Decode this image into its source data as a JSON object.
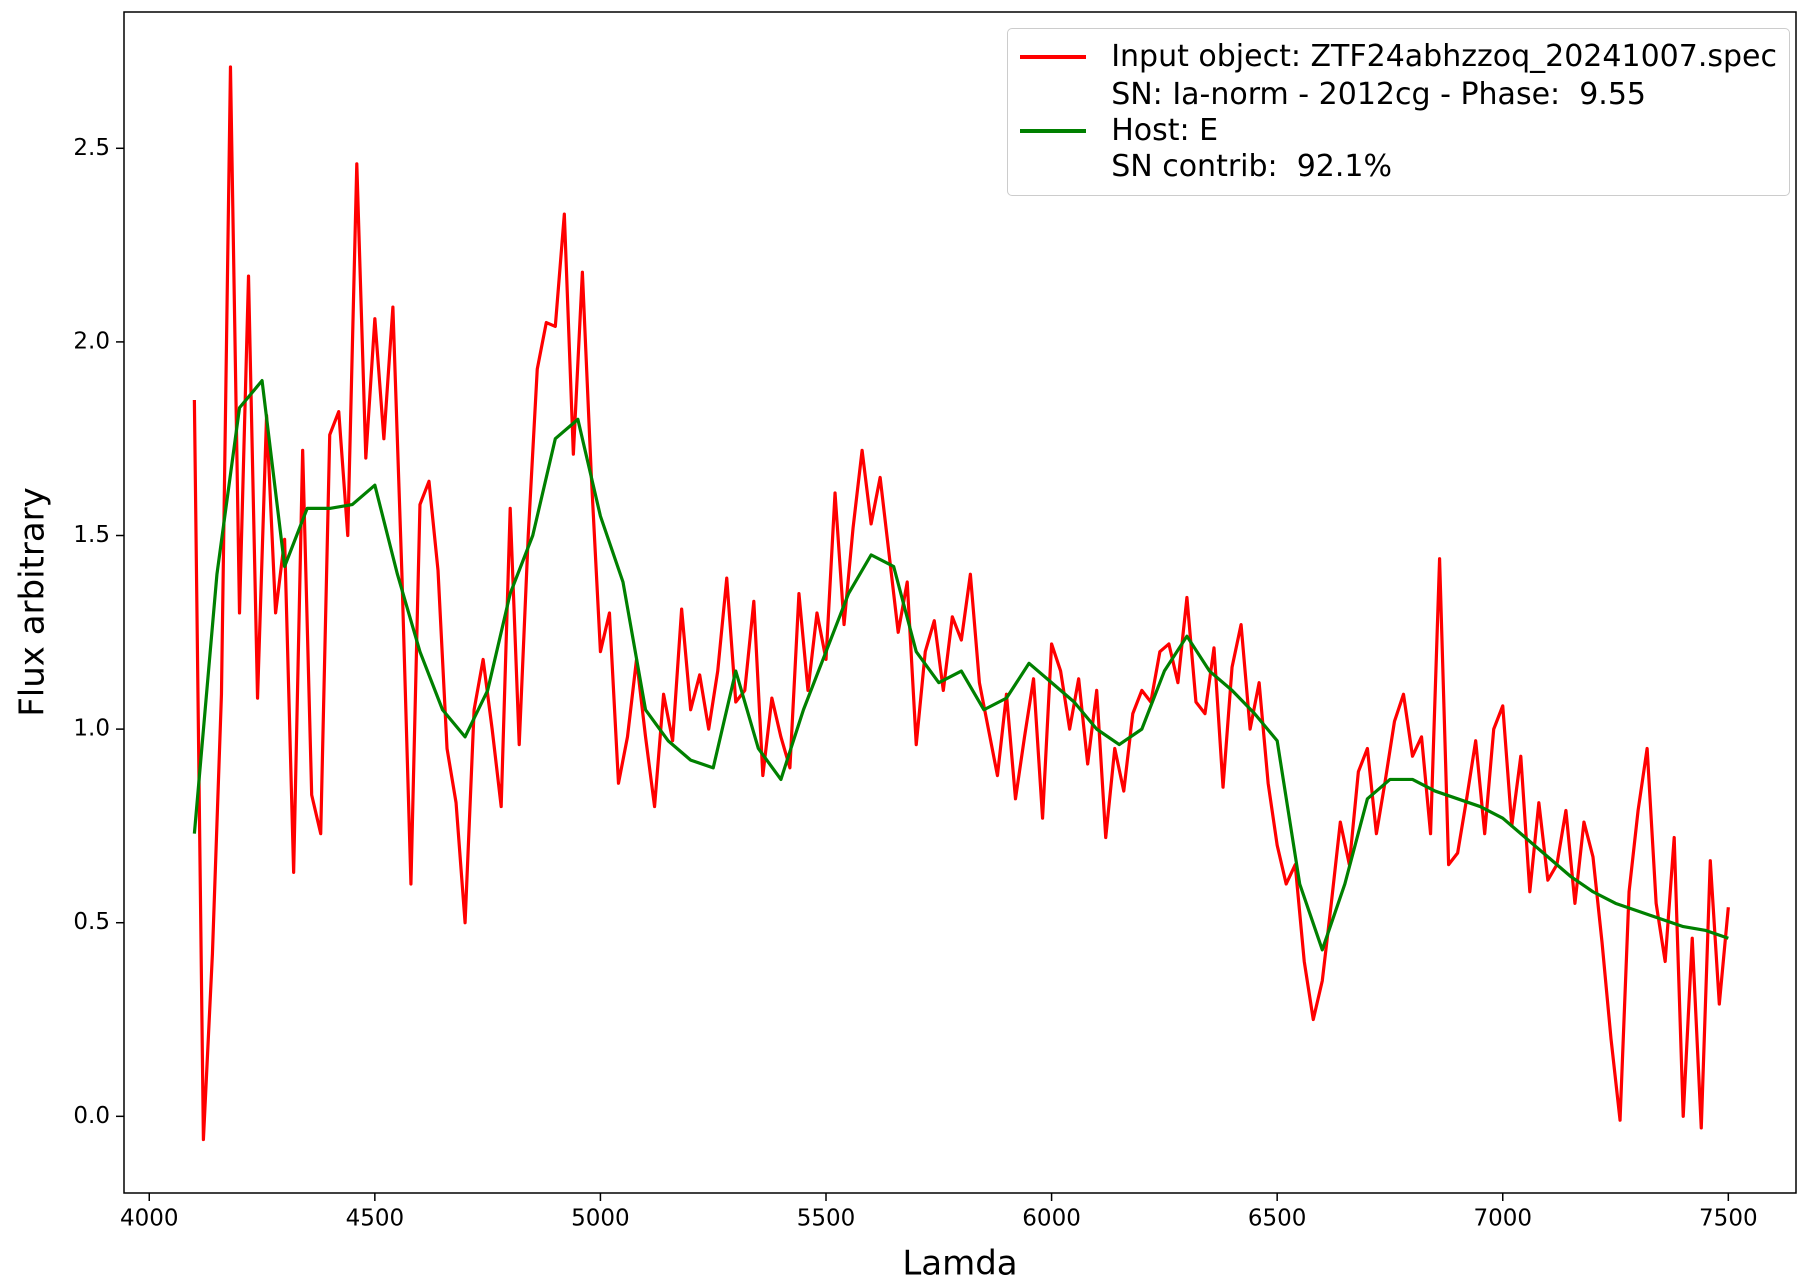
{
  "chart_data": {
    "type": "line",
    "xlabel": "Lamda",
    "ylabel": "Flux arbitrary",
    "xlim": [
      3944,
      7650
    ],
    "ylim": [
      -0.198,
      2.852
    ],
    "xticks": [
      4000,
      4500,
      5000,
      5500,
      6000,
      6500,
      7000,
      7500
    ],
    "yticks": [
      {
        "value": 0,
        "label": "0.0"
      },
      0.5,
      {
        "value": 1,
        "label": "1.0"
      },
      1.5,
      {
        "value": 2,
        "label": "2.0"
      },
      2.5
    ],
    "grid": false,
    "legend": "upper right",
    "series": [
      {
        "name": "Input object: ZTF24abhzzoq_20241007.spec",
        "color": "#ff0000",
        "x": [
          4100,
          4120,
          4140,
          4160,
          4180,
          4200,
          4220,
          4240,
          4260,
          4280,
          4300,
          4320,
          4340,
          4360,
          4380,
          4400,
          4420,
          4440,
          4460,
          4480,
          4500,
          4520,
          4540,
          4560,
          4580,
          4600,
          4620,
          4640,
          4660,
          4680,
          4700,
          4720,
          4740,
          4760,
          4780,
          4800,
          4820,
          4840,
          4860,
          4880,
          4900,
          4920,
          4940,
          4960,
          4980,
          5000,
          5020,
          5040,
          5060,
          5080,
          5100,
          5120,
          5140,
          5160,
          5180,
          5200,
          5220,
          5240,
          5260,
          5280,
          5300,
          5320,
          5340,
          5360,
          5380,
          5400,
          5420,
          5440,
          5460,
          5480,
          5500,
          5520,
          5540,
          5560,
          5580,
          5600,
          5620,
          5640,
          5660,
          5680,
          5700,
          5720,
          5740,
          5760,
          5780,
          5800,
          5820,
          5840,
          5860,
          5880,
          5900,
          5920,
          5940,
          5960,
          5980,
          6000,
          6020,
          6040,
          6060,
          6080,
          6100,
          6120,
          6140,
          6160,
          6180,
          6200,
          6220,
          6240,
          6260,
          6280,
          6300,
          6320,
          6340,
          6360,
          6380,
          6400,
          6420,
          6440,
          6460,
          6480,
          6500,
          6520,
          6540,
          6560,
          6580,
          6600,
          6620,
          6640,
          6660,
          6680,
          6700,
          6720,
          6740,
          6760,
          6780,
          6800,
          6820,
          6840,
          6860,
          6880,
          6900,
          6920,
          6940,
          6960,
          6980,
          7000,
          7020,
          7040,
          7060,
          7080,
          7100,
          7120,
          7140,
          7160,
          7180,
          7200,
          7220,
          7240,
          7260,
          7280,
          7300,
          7320,
          7340,
          7360,
          7380,
          7400,
          7420,
          7440,
          7460,
          7480,
          7500
        ],
        "values": [
          1.85,
          -0.06,
          0.42,
          1.09,
          2.71,
          1.3,
          2.17,
          1.08,
          1.81,
          1.3,
          1.49,
          0.63,
          1.72,
          0.83,
          0.73,
          1.76,
          1.82,
          1.5,
          2.46,
          1.7,
          2.06,
          1.75,
          2.09,
          1.4,
          0.6,
          1.58,
          1.64,
          1.41,
          0.95,
          0.81,
          0.5,
          1.05,
          1.18,
          1.0,
          0.8,
          1.57,
          0.96,
          1.5,
          1.93,
          2.05,
          2.04,
          2.33,
          1.71,
          2.18,
          1.65,
          1.2,
          1.3,
          0.86,
          0.98,
          1.18,
          0.98,
          0.8,
          1.09,
          0.97,
          1.31,
          1.05,
          1.14,
          1.0,
          1.15,
          1.39,
          1.07,
          1.1,
          1.33,
          0.88,
          1.08,
          0.98,
          0.9,
          1.35,
          1.1,
          1.3,
          1.18,
          1.61,
          1.27,
          1.52,
          1.72,
          1.53,
          1.65,
          1.45,
          1.25,
          1.38,
          0.96,
          1.2,
          1.28,
          1.1,
          1.29,
          1.23,
          1.4,
          1.12,
          1.0,
          0.88,
          1.09,
          0.82,
          0.98,
          1.13,
          0.77,
          1.22,
          1.15,
          1.0,
          1.13,
          0.91,
          1.1,
          0.72,
          0.95,
          0.84,
          1.04,
          1.1,
          1.07,
          1.2,
          1.22,
          1.12,
          1.34,
          1.07,
          1.04,
          1.21,
          0.85,
          1.16,
          1.27,
          1.0,
          1.12,
          0.86,
          0.7,
          0.6,
          0.65,
          0.4,
          0.25,
          0.35,
          0.55,
          0.76,
          0.65,
          0.89,
          0.95,
          0.73,
          0.87,
          1.02,
          1.09,
          0.93,
          0.98,
          0.73,
          1.44,
          0.65,
          0.68,
          0.82,
          0.97,
          0.73,
          1.0,
          1.06,
          0.75,
          0.93,
          0.58,
          0.81,
          0.61,
          0.65,
          0.79,
          0.55,
          0.76,
          0.67,
          0.45,
          0.2,
          -0.01,
          0.58,
          0.79,
          0.95,
          0.55,
          0.4,
          0.72,
          0.0,
          0.46,
          -0.03,
          0.66,
          0.29,
          0.54
        ]
      },
      {
        "name": "SN: Ia-norm - 2012cg - Phase:  9.55\nHost: E\nSN contrib:  92.1%",
        "color": "#008000",
        "x": [
          4100,
          4150,
          4200,
          4250,
          4300,
          4350,
          4400,
          4450,
          4500,
          4550,
          4600,
          4650,
          4700,
          4750,
          4800,
          4850,
          4900,
          4950,
          5000,
          5050,
          5100,
          5150,
          5200,
          5250,
          5300,
          5350,
          5400,
          5450,
          5500,
          5550,
          5600,
          5650,
          5700,
          5750,
          5800,
          5850,
          5900,
          5950,
          6000,
          6050,
          6100,
          6150,
          6200,
          6250,
          6300,
          6350,
          6400,
          6450,
          6500,
          6550,
          6600,
          6650,
          6700,
          6750,
          6800,
          6850,
          6900,
          6950,
          7000,
          7050,
          7100,
          7150,
          7200,
          7250,
          7300,
          7350,
          7400,
          7450,
          7500
        ],
        "values": [
          0.73,
          1.4,
          1.83,
          1.9,
          1.42,
          1.57,
          1.57,
          1.58,
          1.63,
          1.4,
          1.2,
          1.05,
          0.98,
          1.1,
          1.35,
          1.5,
          1.75,
          1.8,
          1.55,
          1.38,
          1.05,
          0.97,
          0.92,
          0.9,
          1.15,
          0.95,
          0.87,
          1.05,
          1.2,
          1.35,
          1.45,
          1.42,
          1.2,
          1.12,
          1.15,
          1.05,
          1.08,
          1.17,
          1.12,
          1.07,
          1.0,
          0.96,
          1.0,
          1.15,
          1.24,
          1.15,
          1.1,
          1.04,
          0.97,
          0.6,
          0.43,
          0.6,
          0.82,
          0.87,
          0.87,
          0.84,
          0.82,
          0.8,
          0.77,
          0.72,
          0.67,
          0.62,
          0.58,
          0.55,
          0.53,
          0.51,
          0.49,
          0.48,
          0.46
        ]
      }
    ]
  }
}
